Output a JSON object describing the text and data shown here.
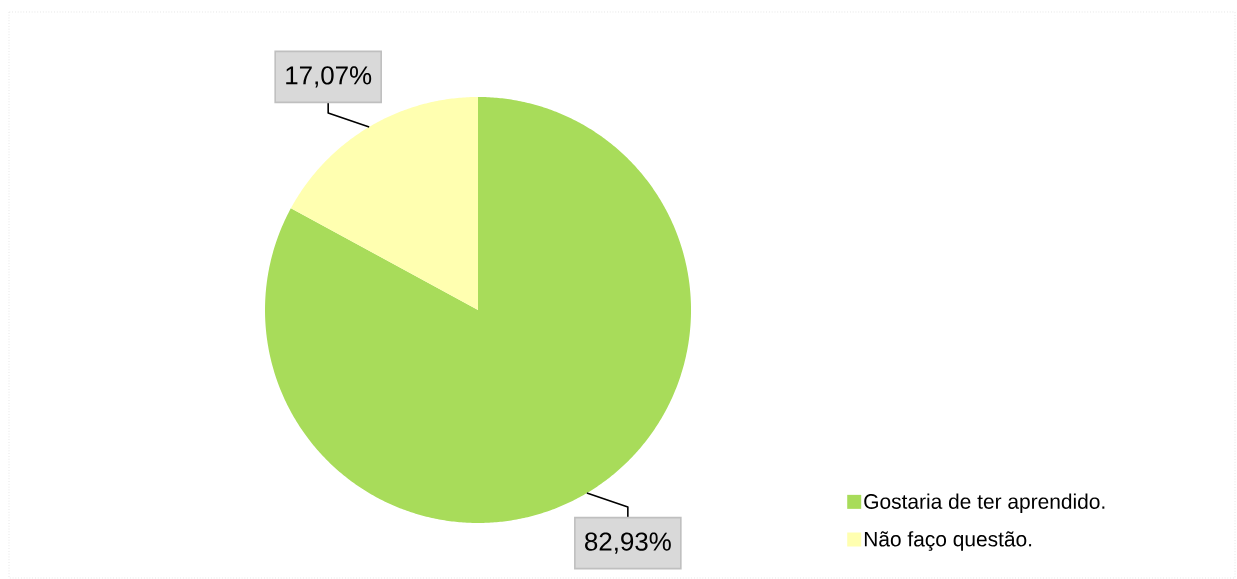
{
  "chart_data": {
    "type": "pie",
    "categories": [
      "Gostaria de ter aprendido.",
      "Não faço questão."
    ],
    "values": [
      82.93,
      17.07
    ],
    "colors": [
      "#a8dc5a",
      "#ffffb0"
    ],
    "value_labels": [
      "82,93%",
      "17,07%"
    ],
    "legend": "bottom right"
  }
}
